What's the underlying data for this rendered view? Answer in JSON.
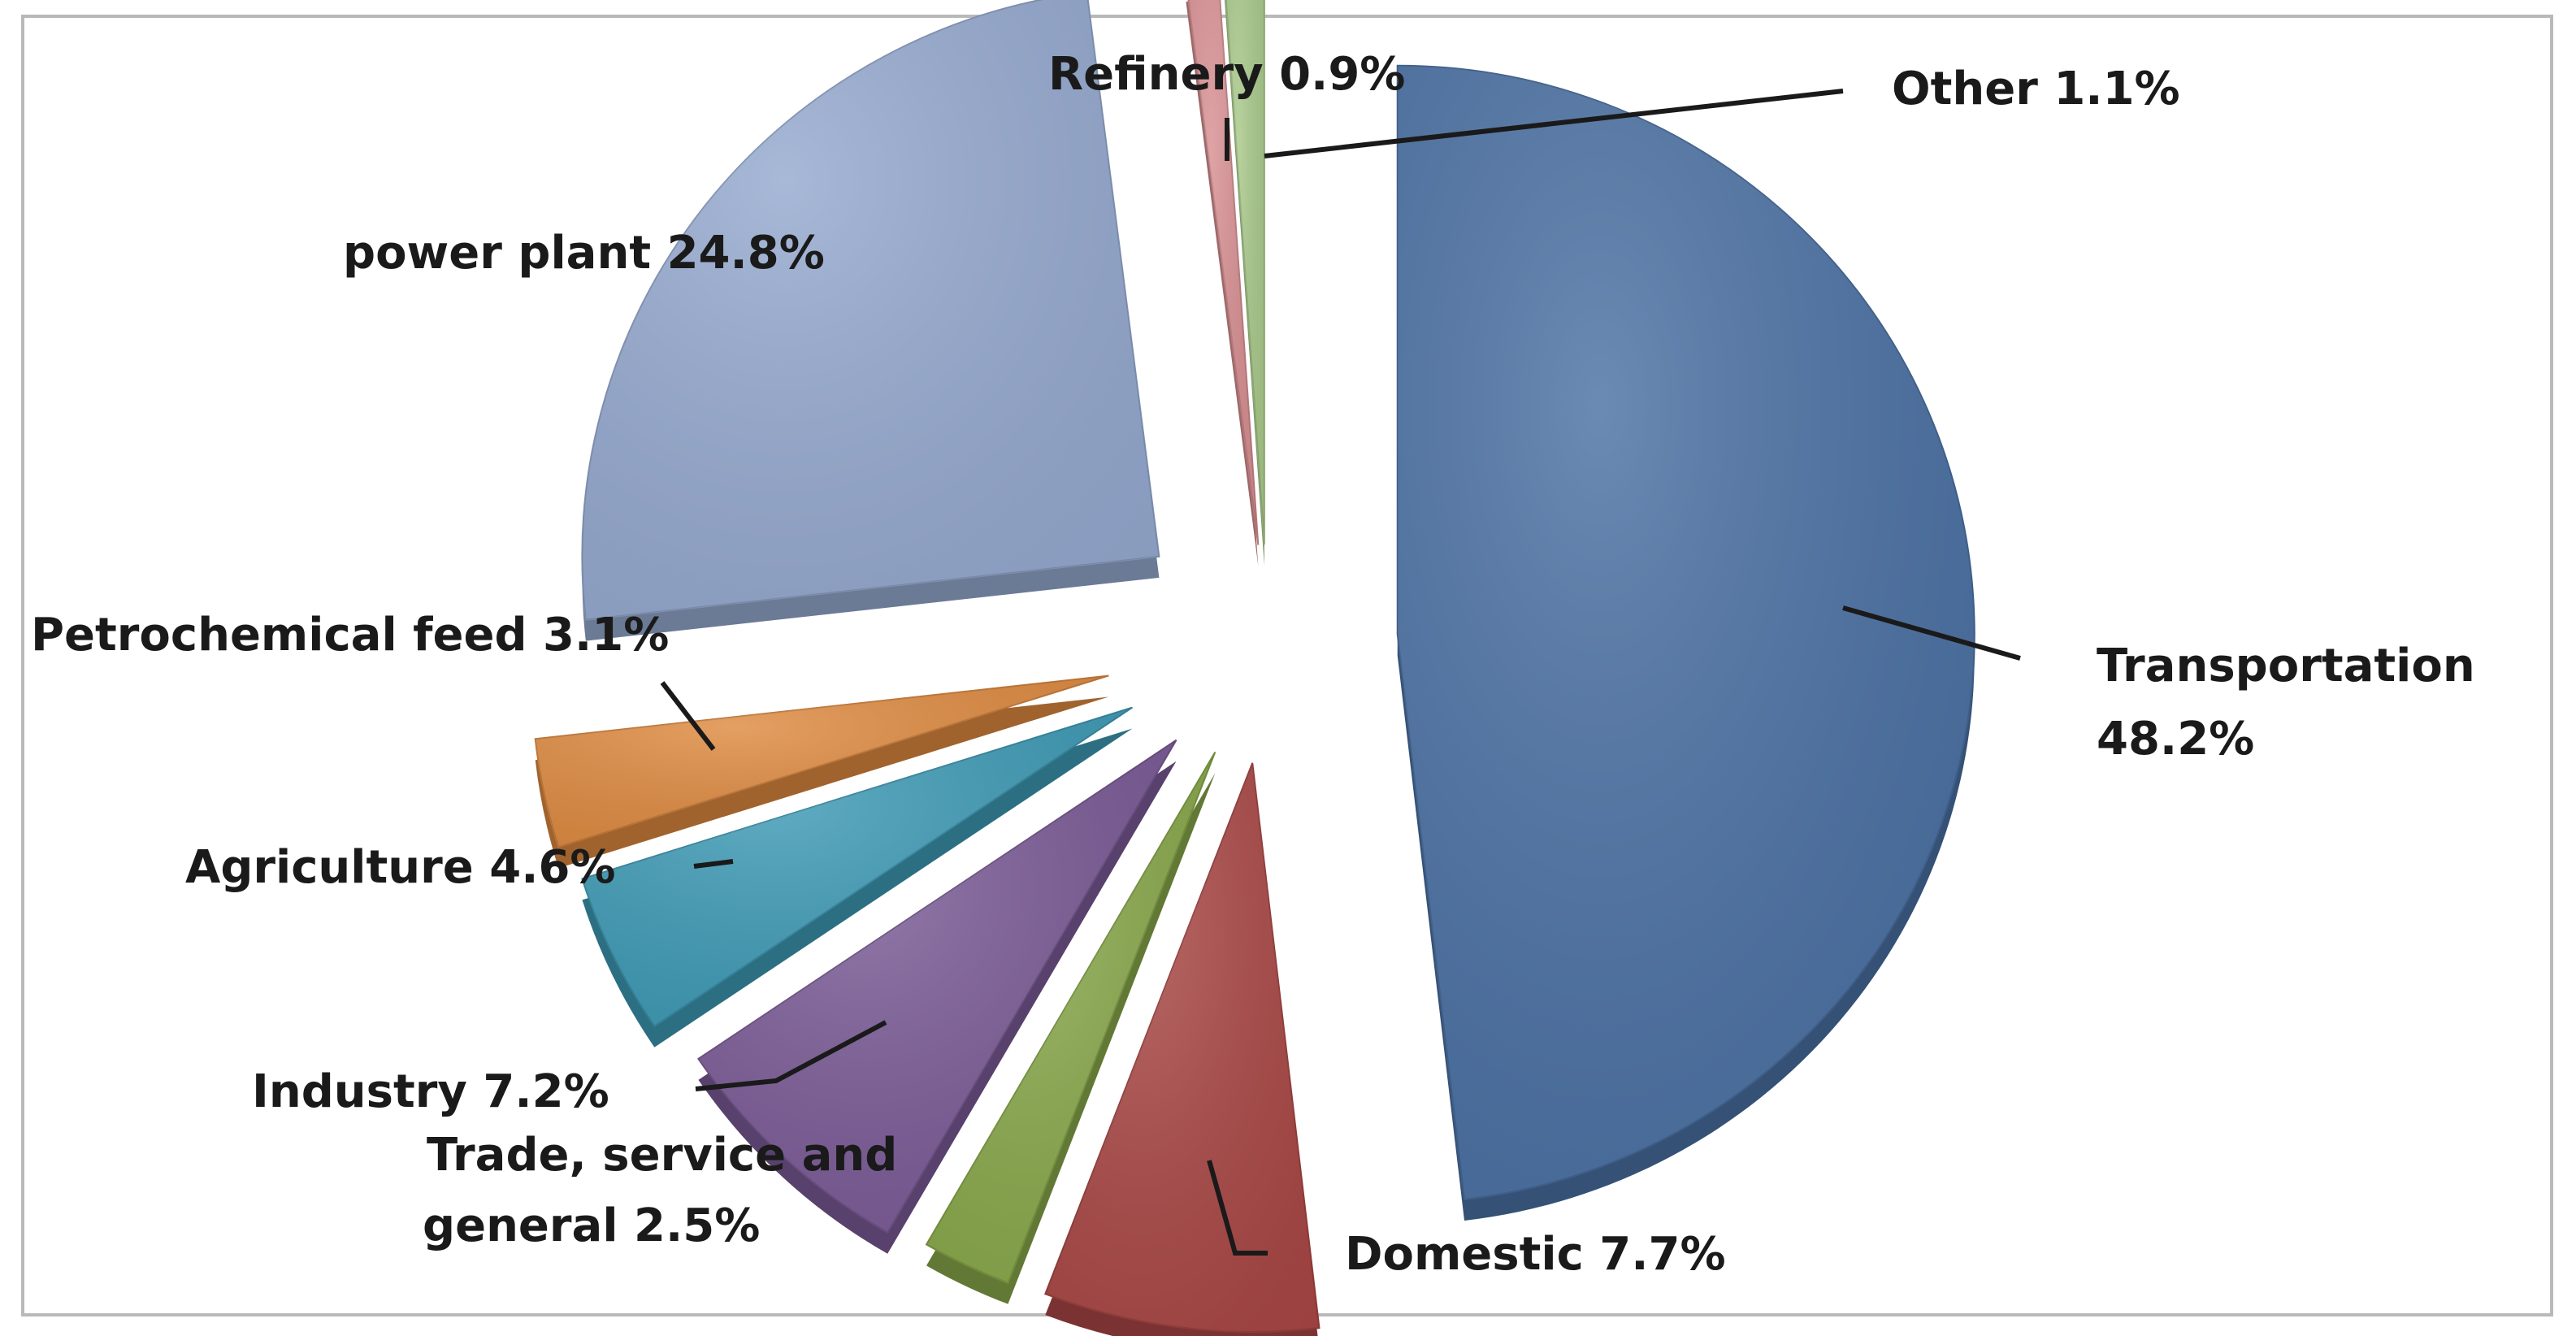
{
  "chart_data": {
    "type": "pie",
    "title": "",
    "slices": [
      {
        "label": "Transportation",
        "value": 48.2,
        "display": "48.2%",
        "color": "#4a70a3"
      },
      {
        "label": "Domestic",
        "value": 7.7,
        "display": "7.7%",
        "color": "#a94745"
      },
      {
        "label": "Trade, service and general",
        "value": 2.5,
        "display": "2.5%",
        "color": "#88a84a"
      },
      {
        "label": "Industry",
        "value": 7.2,
        "display": "7.2%",
        "color": "#7a5a96"
      },
      {
        "label": "Agriculture",
        "value": 4.6,
        "display": "4.6%",
        "color": "#3d9ab5"
      },
      {
        "label": "Petrochemical feed",
        "value": 3.1,
        "display": "3.1%",
        "color": "#de8a40"
      },
      {
        "label": "power plant",
        "value": 24.8,
        "display": "24.8%",
        "color": "#95a9cf"
      },
      {
        "label": "Refinery",
        "value": 0.9,
        "display": "0.9%",
        "color": "#d88f92"
      },
      {
        "label": "Other",
        "value": 1.1,
        "display": "1.1%",
        "color": "#a9c98a"
      }
    ],
    "exploded": true,
    "style": "3d-pie",
    "legend": "none",
    "data_labels": "outside-with-leader-lines"
  },
  "labels": {
    "transportation_line1": "Transportation",
    "transportation_line2": "48.2%",
    "domestic": "Domestic 7.7%",
    "trade_line1": "Trade, service and",
    "trade_line2": "general 2.5%",
    "industry": "Industry 7.2%",
    "agriculture": "Agriculture 4.6%",
    "petrochemical": "Petrochemical feed 3.1%",
    "power_plant": "power plant 24.8%",
    "refinery": "Refinery 0.9%",
    "other": "Other 1.1%"
  }
}
